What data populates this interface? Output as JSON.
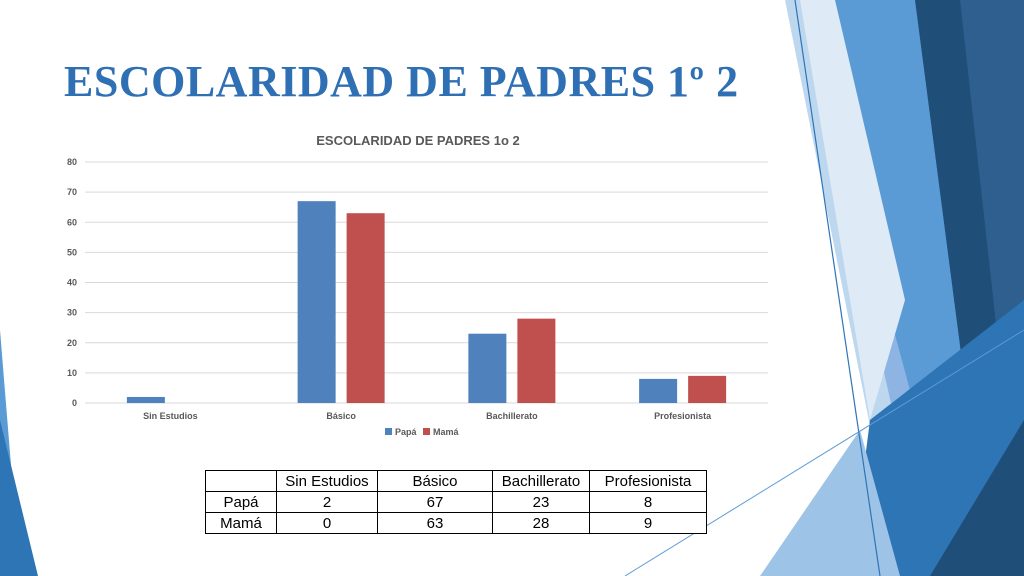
{
  "slide": {
    "title": "ESCOLARIDAD DE PADRES 1º 2"
  },
  "chart_data": {
    "type": "bar",
    "title": "ESCOLARIDAD DE PADRES 1o 2",
    "categories": [
      "Sin Estudios",
      "Básico",
      "Bachillerato",
      "Profesionista"
    ],
    "series": [
      {
        "name": "Papá",
        "values": [
          2,
          67,
          23,
          8
        ],
        "color": "#4F81BD"
      },
      {
        "name": "Mamá",
        "values": [
          0,
          63,
          28,
          9
        ],
        "color": "#C0504D"
      }
    ],
    "ylim": [
      0,
      80
    ],
    "yticks": [
      0,
      10,
      20,
      30,
      40,
      50,
      60,
      70,
      80
    ],
    "grid": true,
    "legend": "bottom"
  },
  "table": {
    "header": [
      "",
      "Sin Estudios",
      "Básico",
      "Bachillerato",
      "Profesionista"
    ],
    "rows": [
      [
        "Papá",
        "2",
        "67",
        "23",
        "8"
      ],
      [
        "Mamá",
        "0",
        "63",
        "28",
        "9"
      ]
    ]
  },
  "colors": {
    "title": "#2F6FB3",
    "decoration_dark": "#1F4E79",
    "decoration_mid": "#2E75B6",
    "decoration_light": "#9DC3E6"
  }
}
